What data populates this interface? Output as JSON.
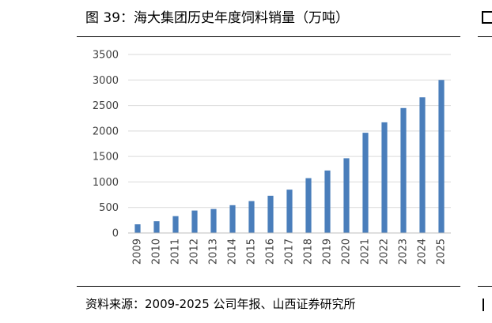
{
  "figure": {
    "title": "图 39：海大集团历史年度饲料销量（万吨）",
    "source": "资料来源：2009-2025 公司年报、山西证券研究所"
  },
  "chart_data": {
    "type": "bar",
    "title": "",
    "xlabel": "",
    "ylabel": "",
    "categories": [
      "2009",
      "2010",
      "2011",
      "2012",
      "2013",
      "2014",
      "2015",
      "2016",
      "2017",
      "2018",
      "2019",
      "2020",
      "2021",
      "2022",
      "2023",
      "2024",
      "2025"
    ],
    "values": [
      170,
      230,
      330,
      440,
      470,
      545,
      625,
      730,
      850,
      1075,
      1225,
      1465,
      1965,
      2170,
      2450,
      2660,
      3000
    ],
    "ylim": [
      0,
      3500
    ],
    "yticks": [
      "0",
      "500",
      "1000",
      "1500",
      "2000",
      "2500",
      "3000",
      "3500"
    ],
    "grid": true,
    "legend": "none",
    "bar_color": "#4a7ebb",
    "grid_color": "#d9d9d9"
  }
}
